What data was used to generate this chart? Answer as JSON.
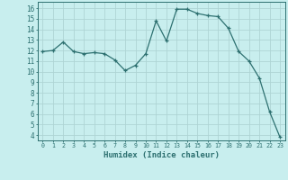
{
  "x": [
    0,
    1,
    2,
    3,
    4,
    5,
    6,
    7,
    8,
    9,
    10,
    11,
    12,
    13,
    14,
    15,
    16,
    17,
    18,
    19,
    20,
    21,
    22,
    23
  ],
  "y": [
    11.9,
    12.0,
    12.8,
    11.9,
    11.7,
    11.8,
    11.7,
    11.1,
    10.1,
    10.6,
    11.7,
    14.8,
    12.9,
    15.9,
    15.9,
    15.5,
    15.3,
    15.2,
    14.1,
    11.9,
    11.0,
    9.4,
    6.2,
    3.8
  ],
  "line_color": "#2d7070",
  "marker": "+",
  "bg_color": "#c8eeee",
  "grid_color": "#aed4d4",
  "xlabel": "Humidex (Indice chaleur)",
  "ylabel_ticks": [
    4,
    5,
    6,
    7,
    8,
    9,
    10,
    11,
    12,
    13,
    14,
    15,
    16
  ],
  "ylim": [
    3.5,
    16.6
  ],
  "xlim": [
    -0.5,
    23.5
  ],
  "tick_color": "#2d7070"
}
